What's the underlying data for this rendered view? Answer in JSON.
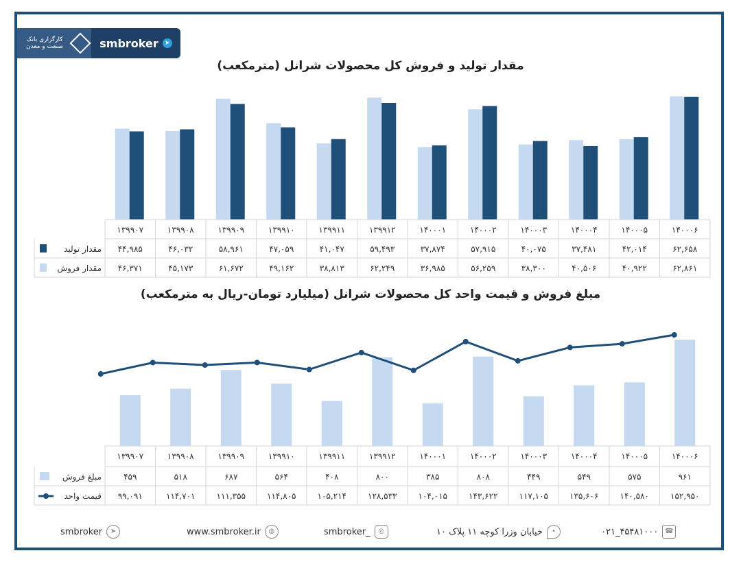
{
  "logo": {
    "bank_text": "کارگزاری بانک صنعت و معدن",
    "brand": "smbroker"
  },
  "colors": {
    "light": "#c5d9f1",
    "dark": "#1f4e79",
    "frame": "#1f4e79"
  },
  "titles": {
    "chart1": "مقدار تولید و فروش کل محصولات شرانل (مترمکعب)",
    "chart2": "مبلغ فروش و قیمت واحد کل محصولات شرانل (میلیارد تومان-ریال به مترمکعب)"
  },
  "chart_data": [
    {
      "type": "bar",
      "categories": [
        "۱۳۹۹۰۷",
        "۱۳۹۹۰۸",
        "۱۳۹۹۰۹",
        "۱۳۹۹۱۰",
        "۱۳۹۹۱۱",
        "۱۳۹۹۱۲",
        "۱۴۰۰۰۱",
        "۱۴۰۰۰۲",
        "۱۴۰۰۰۳",
        "۱۴۰۰۰۴",
        "۱۴۰۰۰۵",
        "۱۴۰۰۰۶"
      ],
      "series": [
        {
          "name": "مقدار فروش",
          "color": "#c5d9f1",
          "values": [
            46371,
            45173,
            61672,
            49162,
            38813,
            62249,
            36985,
            56259,
            38300,
            40506,
            40922,
            62861
          ],
          "labels": [
            "۴۶,۳۷۱",
            "۴۵,۱۷۳",
            "۶۱,۶۷۲",
            "۴۹,۱۶۲",
            "۳۸,۸۱۳",
            "۶۲,۲۴۹",
            "۳۶,۹۸۵",
            "۵۶,۲۵۹",
            "۳۸,۳۰۰",
            "۴۰,۵۰۶",
            "۴۰,۹۲۲",
            "۶۲,۸۶۱"
          ]
        },
        {
          "name": "مقدار تولید",
          "color": "#1f4e79",
          "values": [
            44985,
            46032,
            58961,
            47059,
            41047,
            59493,
            37874,
            57915,
            40075,
            37481,
            42014,
            62658
          ],
          "labels": [
            "۴۴,۹۸۵",
            "۴۶,۰۳۲",
            "۵۸,۹۶۱",
            "۴۷,۰۵۹",
            "۴۱,۰۴۷",
            "۵۹,۴۹۳",
            "۳۷,۸۷۴",
            "۵۷,۹۱۵",
            "۴۰,۰۷۵",
            "۳۷,۴۸۱",
            "۴۲,۰۱۴",
            "۶۲,۶۵۸"
          ]
        }
      ]
    },
    {
      "type": "bar+line",
      "categories": [
        "۱۳۹۹۰۷",
        "۱۳۹۹۰۸",
        "۱۳۹۹۰۹",
        "۱۳۹۹۱۰",
        "۱۳۹۹۱۱",
        "۱۳۹۹۱۲",
        "۱۴۰۰۰۱",
        "۱۴۰۰۰۲",
        "۱۴۰۰۰۳",
        "۱۴۰۰۰۴",
        "۱۴۰۰۰۵",
        "۱۴۰۰۰۶"
      ],
      "series": [
        {
          "name": "مبلغ فروش",
          "color": "#c5d9f1",
          "kind": "bar",
          "values": [
            459,
            518,
            687,
            564,
            408,
            800,
            385,
            808,
            449,
            549,
            575,
            961
          ],
          "labels": [
            "۴۵۹",
            "۵۱۸",
            "۶۸۷",
            "۵۶۴",
            "۴۰۸",
            "۸۰۰",
            "۳۸۵",
            "۸۰۸",
            "۴۴۹",
            "۵۴۹",
            "۵۷۵",
            "۹۶۱"
          ]
        },
        {
          "name": "قیمت واحد",
          "color": "#1f4e79",
          "kind": "line",
          "values": [
            99091,
            114701,
            111355,
            114805,
            105214,
            128533,
            104015,
            143622,
            117105,
            135606,
            140580,
            152950
          ],
          "labels": [
            "۹۹,۰۹۱",
            "۱۱۴,۷۰۱",
            "۱۱۱,۳۵۵",
            "۱۱۴,۸۰۵",
            "۱۰۵,۲۱۴",
            "۱۲۸,۵۳۳",
            "۱۰۴,۰۱۵",
            "۱۴۳,۶۲۲",
            "۱۱۷,۱۰۵",
            "۱۳۵,۶۰۶",
            "۱۴۰,۵۸۰",
            "۱۵۲,۹۵۰"
          ]
        }
      ]
    }
  ],
  "footer": {
    "telegram": "smbroker",
    "website": "www.smbroker.ir",
    "instagram": "smbroker_",
    "address": "خیابان وزرا کوچه ۱۱ پلاک ۱۰",
    "phone": "۰۲۱_۴۵۴۸۱۰۰۰"
  }
}
